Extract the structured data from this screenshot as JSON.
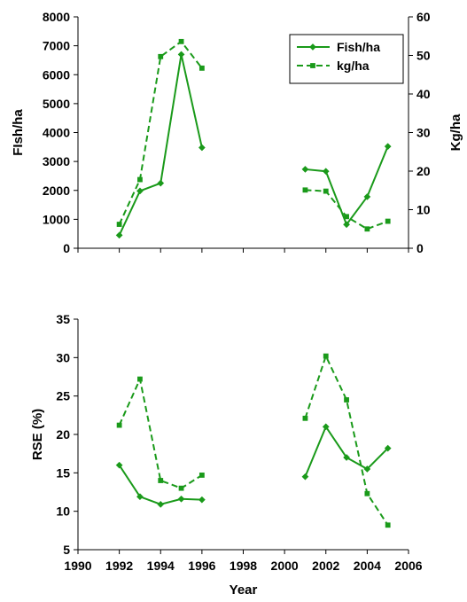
{
  "colors": {
    "series": "#1a9a1a",
    "axis": "#000000",
    "background": "#ffffff"
  },
  "chart_data": [
    {
      "type": "line",
      "ylabel": "FIsh/ha",
      "y2label": "Kg/ha",
      "xlim": [
        1990,
        2006
      ],
      "ylim": [
        0,
        8000
      ],
      "y2lim": [
        0,
        60
      ],
      "yticks": [
        0,
        1000,
        2000,
        3000,
        4000,
        5000,
        6000,
        7000,
        8000
      ],
      "y2ticks": [
        0,
        10,
        20,
        30,
        40,
        50,
        60
      ],
      "grid": false,
      "legend": {
        "position": "top-right"
      },
      "series": [
        {
          "name": "Fish/ha",
          "axis": "left",
          "style": "solid",
          "marker": "diamond",
          "segments": [
            {
              "x": [
                1992,
                1993,
                1994,
                1995,
                1996
              ],
              "y": [
                450,
                1980,
                2250,
                6700,
                3480
              ]
            },
            {
              "x": [
                2001,
                2002,
                2003,
                2004,
                2005
              ],
              "y": [
                2730,
                2660,
                820,
                1780,
                3520
              ]
            }
          ]
        },
        {
          "name": "kg/ha",
          "axis": "right",
          "style": "dashed",
          "marker": "square",
          "segments": [
            {
              "x": [
                1992,
                1993,
                1994,
                1995,
                1996
              ],
              "y": [
                6.2,
                17.8,
                49.7,
                53.6,
                46.7
              ]
            },
            {
              "x": [
                2001,
                2002,
                2003,
                2004,
                2005
              ],
              "y": [
                15.1,
                14.8,
                8.2,
                5.0,
                7.0
              ]
            }
          ]
        }
      ]
    },
    {
      "type": "line",
      "xlabel": "Year",
      "ylabel": "RSE (%)",
      "xlim": [
        1990,
        2006
      ],
      "ylim": [
        5,
        35
      ],
      "xticks": [
        1990,
        1992,
        1994,
        1996,
        1998,
        2000,
        2002,
        2004,
        2006
      ],
      "yticks": [
        5,
        10,
        15,
        20,
        25,
        30,
        35
      ],
      "grid": false,
      "series": [
        {
          "axis": "left",
          "style": "solid",
          "marker": "diamond",
          "segments": [
            {
              "x": [
                1992,
                1993,
                1994,
                1995,
                1996
              ],
              "y": [
                16.0,
                11.9,
                10.9,
                11.6,
                11.5
              ]
            },
            {
              "x": [
                2001,
                2002,
                2003,
                2004,
                2005
              ],
              "y": [
                14.5,
                21.0,
                17.0,
                15.5,
                18.2
              ]
            }
          ]
        },
        {
          "axis": "left",
          "style": "dashed",
          "marker": "square",
          "segments": [
            {
              "x": [
                1992,
                1993,
                1994,
                1995,
                1996
              ],
              "y": [
                21.2,
                27.2,
                14.0,
                13.0,
                14.7
              ]
            },
            {
              "x": [
                2001,
                2002,
                2003,
                2004,
                2005
              ],
              "y": [
                22.1,
                30.2,
                24.5,
                12.3,
                8.2
              ]
            }
          ]
        }
      ]
    }
  ]
}
